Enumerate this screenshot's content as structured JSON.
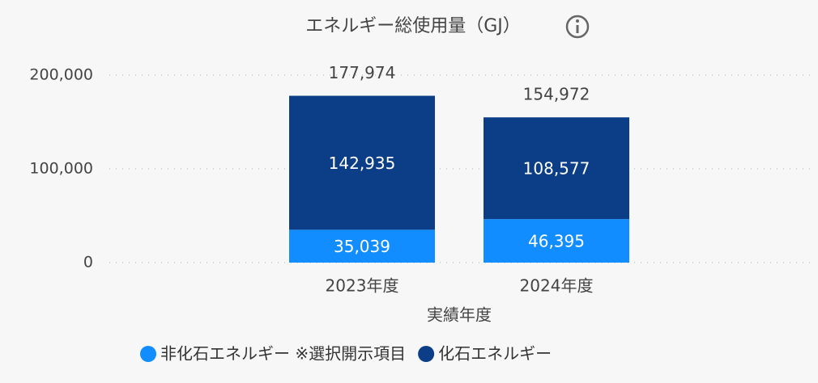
{
  "chart_data": {
    "type": "stacked_bar",
    "title": "エネルギー総使用量（GJ）",
    "x_label": "実績年度",
    "categories": [
      "2023年度",
      "2024年度"
    ],
    "series": [
      {
        "name": "非化石エネルギー ※選択開示項目",
        "color": "#118dff",
        "values": [
          35039,
          46395
        ],
        "value_labels": [
          "35,039",
          "46,395"
        ]
      },
      {
        "name": "化石エネルギー",
        "color": "#0b3e87",
        "values": [
          142935,
          108577
        ],
        "value_labels": [
          "142,935",
          "108,577"
        ]
      }
    ],
    "totals": [
      177974,
      154972
    ],
    "total_labels": [
      "177,974",
      "154,972"
    ],
    "ylim": [
      0,
      200000
    ],
    "yticks": [
      0,
      {
        "value": 100000,
        "label": "100,000"
      },
      {
        "value": 200000,
        "label": "200,000"
      }
    ],
    "grid": true
  }
}
